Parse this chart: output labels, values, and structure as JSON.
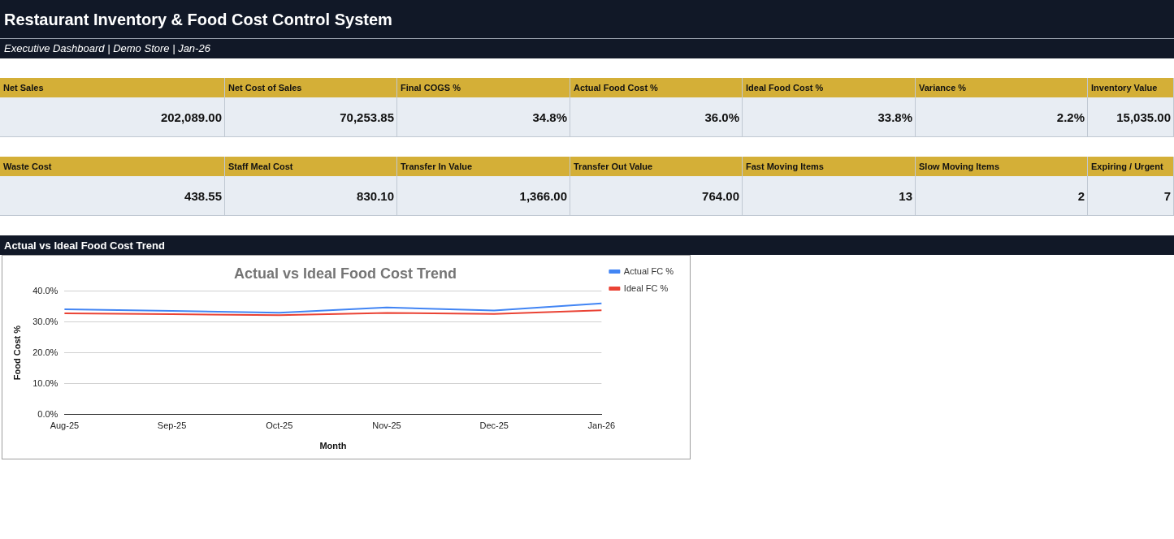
{
  "chart_data": [
    {
      "type": "other",
      "title": "Restaurant Inventory & Food Cost Control System",
      "subtitle": "Executive Dashboard | Demo Store | Jan-26",
      "categories": [
        "Net Sales",
        "Net Cost of Sales",
        "Final COGS %",
        "Actual Food Cost %",
        "Ideal Food Cost %",
        "Variance %",
        "Inventory Value",
        "Waste Cost",
        "Staff Meal Cost",
        "Transfer In Value",
        "Transfer Out Value",
        "Fast Moving Items",
        "Slow Moving Items",
        "Expiring / Urgent"
      ],
      "value_labels": [
        "202,089.00",
        "70,253.85",
        "34.8%",
        "36.0%",
        "33.8%",
        "2.2%",
        "15,035.00",
        "438.55",
        "830.10",
        "1,366.00",
        "764.00",
        "13",
        "2",
        "7"
      ],
      "annotations": [
        "Actual vs Ideal Food Cost Trend"
      ]
    },
    {
      "type": "line",
      "title": "Actual vs Ideal Food Cost Trend",
      "xlabel": "Month",
      "ylabel": "Food Cost %",
      "categories": [
        "Aug-25",
        "Sep-25",
        "Oct-25",
        "Nov-25",
        "Dec-25",
        "Jan-26"
      ],
      "series": [
        {
          "name": "Actual FC %",
          "color": "#4285f4",
          "values": [
            34.1,
            33.6,
            33.0,
            34.7,
            33.7,
            36.0
          ]
        },
        {
          "name": "Ideal FC %",
          "color": "#ea4335",
          "values": [
            32.8,
            32.5,
            32.2,
            32.9,
            32.6,
            33.8
          ]
        }
      ],
      "ylim": [
        0,
        40
      ],
      "yticks": [
        {
          "value": 0,
          "label": "0.0%"
        },
        {
          "value": 10,
          "label": "10.0%"
        },
        {
          "value": 20,
          "label": "20.0%"
        },
        {
          "value": 30,
          "label": "30.0%"
        },
        {
          "value": 40,
          "label": "40.0%"
        }
      ],
      "grid": "y",
      "legend": "top right",
      "marker": "none",
      "line_style": "solid"
    }
  ]
}
